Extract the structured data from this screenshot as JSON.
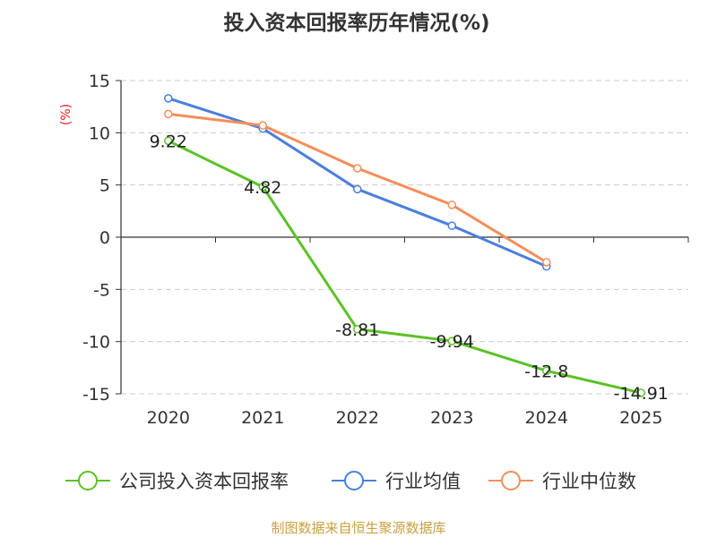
{
  "chart_data": {
    "type": "line",
    "title": "投入资本回报率历年情况(%)",
    "ylabel": "(%)",
    "xlabel": "",
    "categories": [
      "2020",
      "2021",
      "2022",
      "2023",
      "2024",
      "2025"
    ],
    "ylim": [
      -15,
      15
    ],
    "yticks": [
      15,
      10,
      5,
      0,
      -5,
      -10,
      -15
    ],
    "grid": true,
    "legend_position": "bottom",
    "series": [
      {
        "name": "公司投入资本回报率",
        "color": "#5bc226",
        "values": [
          9.22,
          4.82,
          -8.81,
          -9.94,
          -12.8,
          -14.91
        ],
        "labels": [
          "9.22",
          "4.82",
          "-8.81",
          "-9.94",
          "-12.8",
          "-14.91"
        ]
      },
      {
        "name": "行业均值",
        "color": "#4a7fdc",
        "values": [
          13.3,
          10.4,
          4.6,
          1.1,
          -2.8,
          null
        ]
      },
      {
        "name": "行业中位数",
        "color": "#f58d5a",
        "values": [
          11.8,
          10.7,
          6.6,
          3.1,
          -2.4,
          null
        ]
      }
    ]
  },
  "source": "制图数据来自恒生聚源数据库"
}
